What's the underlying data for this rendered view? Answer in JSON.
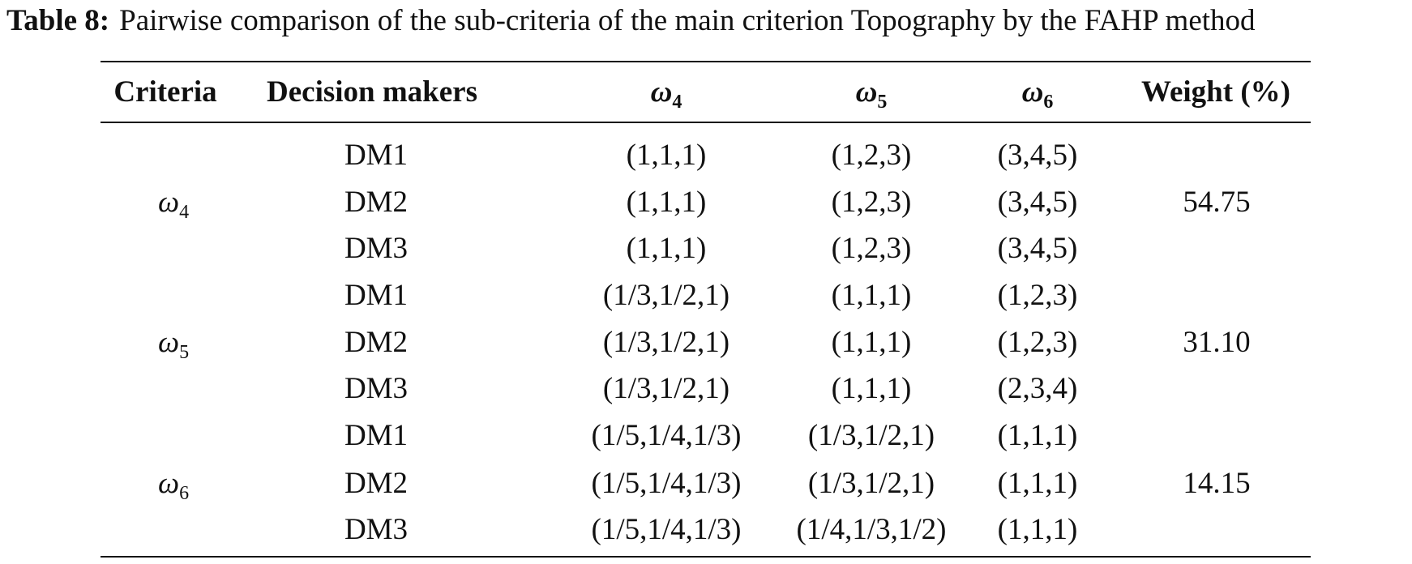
{
  "caption": {
    "label": "Table 8:",
    "text": "Pairwise comparison of the sub-criteria of the main criterion Topography by the FAHP method"
  },
  "headers": {
    "criteria": "Criteria",
    "decision_makers": "Decision makers",
    "w4": {
      "symbol": "ω",
      "sub": "4"
    },
    "w5": {
      "symbol": "ω",
      "sub": "5"
    },
    "w6": {
      "symbol": "ω",
      "sub": "6"
    },
    "weight": "Weight (%)"
  },
  "groups": [
    {
      "criterion": {
        "symbol": "ω",
        "sub": "4"
      },
      "weight": "54.75",
      "rows": [
        {
          "dm": "DM1",
          "w4": "(1,1,1)",
          "w5": "(1,2,3)",
          "w6": "(3,4,5)"
        },
        {
          "dm": "DM2",
          "w4": "(1,1,1)",
          "w5": "(1,2,3)",
          "w6": "(3,4,5)"
        },
        {
          "dm": "DM3",
          "w4": "(1,1,1)",
          "w5": "(1,2,3)",
          "w6": "(3,4,5)"
        }
      ]
    },
    {
      "criterion": {
        "symbol": "ω",
        "sub": "5"
      },
      "weight": "31.10",
      "rows": [
        {
          "dm": "DM1",
          "w4": "(1/3,1/2,1)",
          "w5": "(1,1,1)",
          "w6": "(1,2,3)"
        },
        {
          "dm": "DM2",
          "w4": "(1/3,1/2,1)",
          "w5": "(1,1,1)",
          "w6": "(1,2,3)"
        },
        {
          "dm": "DM3",
          "w4": "(1/3,1/2,1)",
          "w5": "(1,1,1)",
          "w6": "(2,3,4)"
        }
      ]
    },
    {
      "criterion": {
        "symbol": "ω",
        "sub": "6"
      },
      "weight": "14.15",
      "rows": [
        {
          "dm": "DM1",
          "w4": "(1/5,1/4,1/3)",
          "w5": "(1/3,1/2,1)",
          "w6": "(1,1,1)"
        },
        {
          "dm": "DM2",
          "w4": "(1/5,1/4,1/3)",
          "w5": "(1/3,1/2,1)",
          "w6": "(1,1,1)"
        },
        {
          "dm": "DM3",
          "w4": "(1/5,1/4,1/3)",
          "w5": "(1/4,1/3,1/2)",
          "w6": "(1,1,1)"
        }
      ]
    }
  ]
}
